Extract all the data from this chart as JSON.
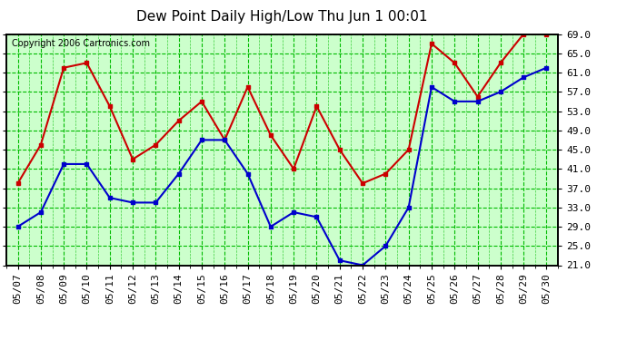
{
  "title": "Dew Point Daily High/Low Thu Jun 1 00:01",
  "copyright": "Copyright 2006 Cartronics.com",
  "x_labels": [
    "05/07",
    "05/08",
    "05/09",
    "05/10",
    "05/11",
    "05/12",
    "05/13",
    "05/14",
    "05/15",
    "05/16",
    "05/17",
    "05/18",
    "05/19",
    "05/20",
    "05/21",
    "05/22",
    "05/23",
    "05/24",
    "05/25",
    "05/26",
    "05/27",
    "05/28",
    "05/29",
    "05/30"
  ],
  "high_values": [
    38,
    46,
    62,
    63,
    54,
    43,
    46,
    51,
    55,
    47,
    58,
    48,
    41,
    54,
    45,
    38,
    40,
    45,
    67,
    63,
    56,
    63,
    69,
    69
  ],
  "low_values": [
    29,
    32,
    42,
    42,
    35,
    34,
    34,
    40,
    47,
    47,
    40,
    29,
    32,
    31,
    22,
    21,
    25,
    33,
    58,
    55,
    55,
    57,
    60,
    62
  ],
  "high_color": "#cc0000",
  "low_color": "#0000cc",
  "bg_color": "#ffffff",
  "plot_bg_color": "#ccffcc",
  "grid_color": "#00bb00",
  "ylim": [
    21.0,
    69.0
  ],
  "yticks": [
    21.0,
    25.0,
    29.0,
    33.0,
    37.0,
    41.0,
    45.0,
    49.0,
    53.0,
    57.0,
    61.0,
    65.0,
    69.0
  ],
  "border_color": "#000000",
  "marker": "s",
  "markersize": 3,
  "linewidth": 1.5,
  "title_fontsize": 11,
  "tick_fontsize": 8,
  "copyright_fontsize": 7
}
